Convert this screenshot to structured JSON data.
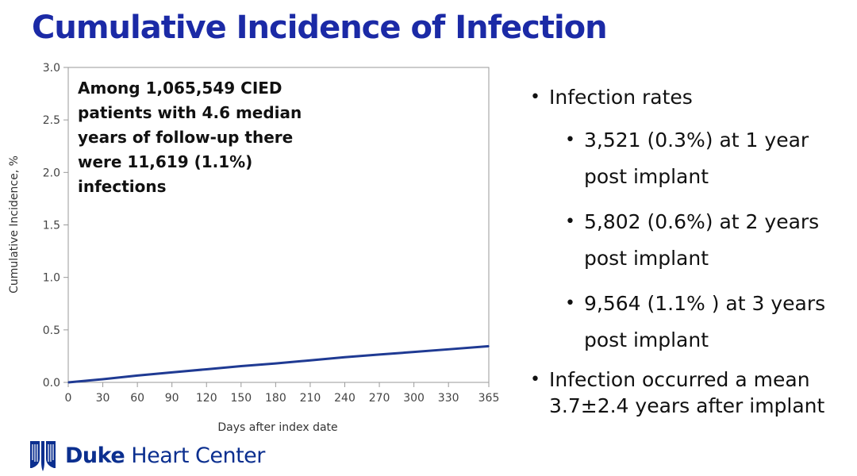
{
  "title": "Cumulative Incidence of Infection",
  "annotation": "Among 1,065,549 CIED patients with 4.6 median years of follow-up there were 11,619 (1.1%) infections",
  "bullets": [
    {
      "text": "Infection rates",
      "level": 1
    },
    {
      "text": "3,521 (0.3%) at 1 year post implant",
      "level": 2
    },
    {
      "text": "5,802 (0.6%) at 2 years post implant",
      "level": 2
    },
    {
      "text": "9,564 (1.1% ) at 3 years post implant",
      "level": 2
    },
    {
      "text": "Infection occurred a mean 3.7±2.4 years after implant",
      "level": 1
    }
  ],
  "logo": {
    "name_bold": "Duke",
    "name_rest": "Heart Center",
    "icon": "duke-shield-icon"
  },
  "chart_data": {
    "type": "line",
    "title": "",
    "xlabel": "Days after index date",
    "ylabel": "Cumulative Incidence, %",
    "xlim": [
      0,
      365
    ],
    "ylim": [
      0,
      3.0
    ],
    "x_ticks": [
      0,
      30,
      60,
      90,
      120,
      150,
      180,
      210,
      240,
      270,
      300,
      330,
      365
    ],
    "y_ticks": [
      0.0,
      0.5,
      1.0,
      1.5,
      2.0,
      2.5,
      3.0
    ],
    "y_tick_labels": [
      "0.0",
      "0.5",
      "1.0",
      "1.5",
      "2.0",
      "2.5",
      "3.0"
    ],
    "grid": false,
    "legend": "none",
    "line_color": "#1f3a93",
    "series": [
      {
        "x": [
          0,
          30,
          60,
          90,
          120,
          150,
          180,
          210,
          240,
          270,
          300,
          330,
          365
        ],
        "values": [
          0.0,
          0.03,
          0.065,
          0.095,
          0.125,
          0.155,
          0.18,
          0.21,
          0.24,
          0.265,
          0.29,
          0.315,
          0.345
        ]
      }
    ]
  }
}
